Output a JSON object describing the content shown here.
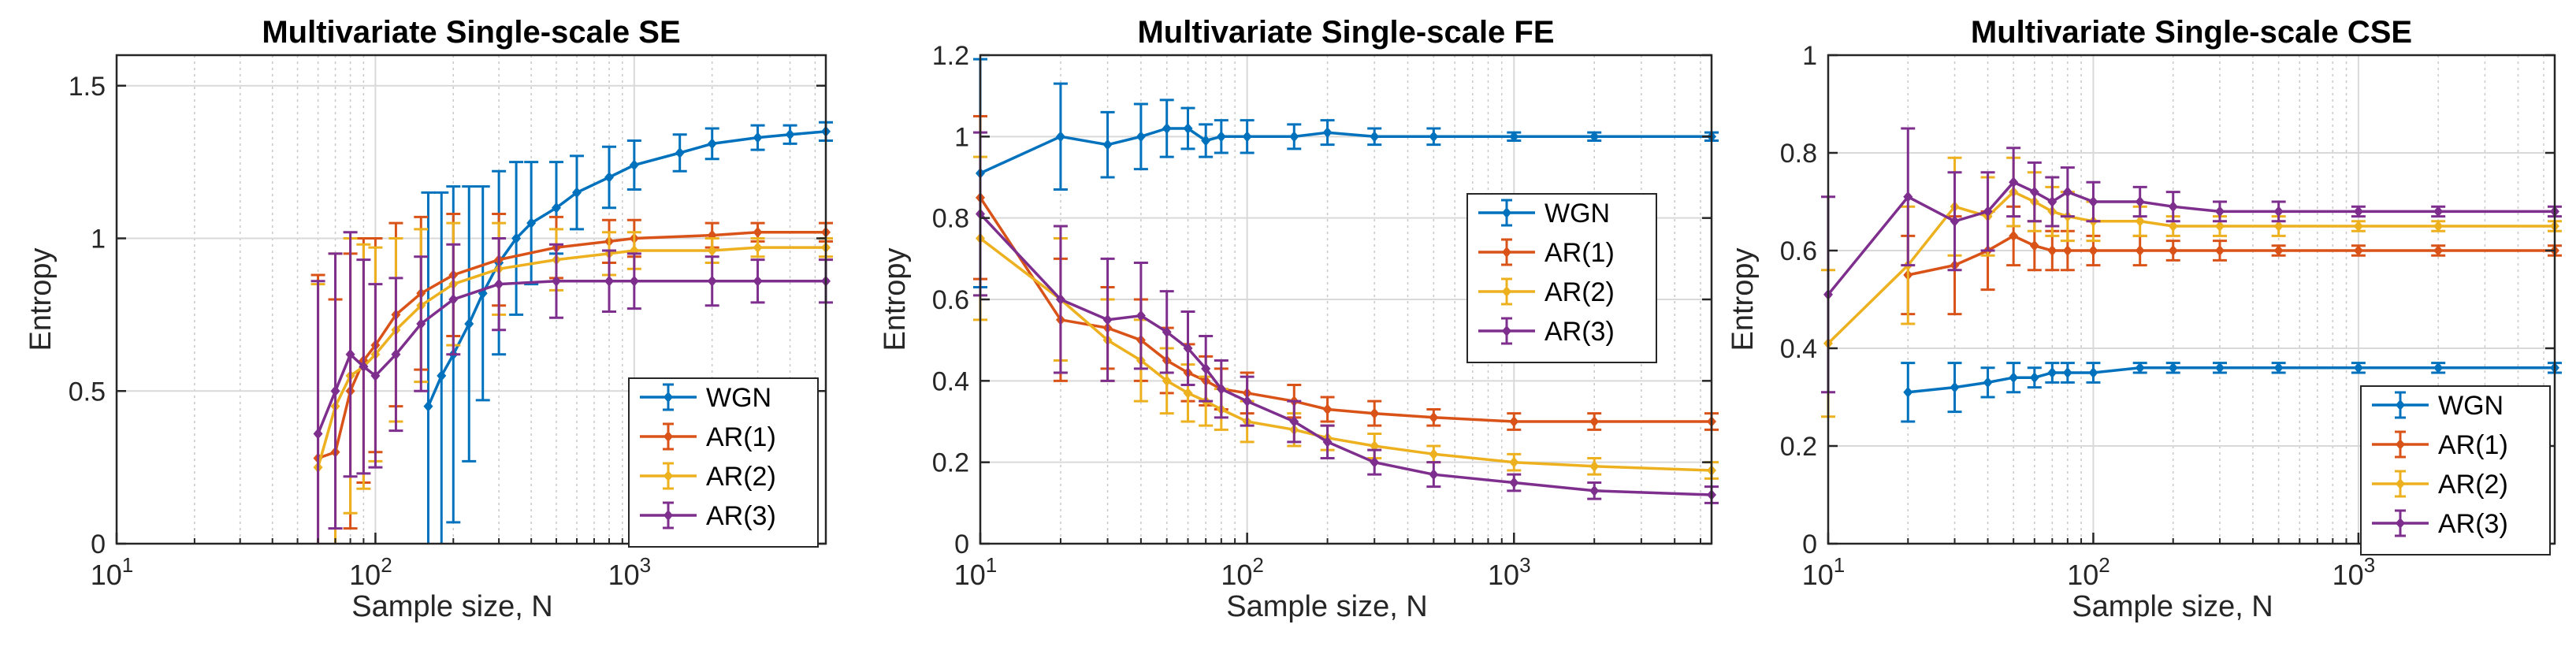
{
  "colors": {
    "WGN": "#0072BD",
    "AR(1)": "#D95319",
    "AR(2)": "#EDB120",
    "AR(3)": "#7E2F8E"
  },
  "chart_data": [
    {
      "type": "line",
      "title": "Multivariate Single-scale SE",
      "xlabel": "Sample size, N",
      "ylabel": "Entropy",
      "xscale": "log",
      "xlim": [
        10,
        5500
      ],
      "ylim": [
        0,
        1.6
      ],
      "yticks": [
        "0",
        "0.5",
        "1",
        "1.5"
      ],
      "yticks_values": [
        0,
        0.5,
        1,
        1.5
      ],
      "legend_position": "bottom-right",
      "series": [
        {
          "name": "WGN",
          "x": [
            160,
            180,
            200,
            230,
            260,
            300,
            350,
            400,
            500,
            600,
            800,
            1000,
            1500,
            2000,
            3000,
            4000,
            5500
          ],
          "y": [
            0.45,
            0.55,
            0.62,
            0.72,
            0.82,
            0.92,
            1.0,
            1.05,
            1.1,
            1.15,
            1.2,
            1.24,
            1.28,
            1.31,
            1.33,
            1.34,
            1.35
          ],
          "err": [
            0.7,
            0.6,
            0.55,
            0.45,
            0.35,
            0.3,
            0.25,
            0.2,
            0.15,
            0.12,
            0.1,
            0.08,
            0.06,
            0.05,
            0.04,
            0.03,
            0.03
          ]
        },
        {
          "name": "AR(1)",
          "x": [
            60,
            70,
            80,
            90,
            100,
            120,
            150,
            200,
            300,
            500,
            800,
            1000,
            2000,
            3000,
            5500
          ],
          "y": [
            0.28,
            0.3,
            0.5,
            0.6,
            0.65,
            0.75,
            0.82,
            0.88,
            0.93,
            0.97,
            0.99,
            1.0,
            1.01,
            1.02,
            1.02
          ],
          "err": [
            0.6,
            0.5,
            0.45,
            0.4,
            0.35,
            0.3,
            0.25,
            0.2,
            0.15,
            0.1,
            0.07,
            0.06,
            0.04,
            0.03,
            0.03
          ]
        },
        {
          "name": "AR(2)",
          "x": [
            60,
            70,
            80,
            90,
            100,
            120,
            150,
            200,
            300,
            500,
            800,
            1000,
            2000,
            3000,
            5500
          ],
          "y": [
            0.25,
            0.45,
            0.55,
            0.58,
            0.62,
            0.7,
            0.78,
            0.85,
            0.9,
            0.93,
            0.95,
            0.96,
            0.96,
            0.97,
            0.97
          ],
          "err": [
            0.6,
            0.5,
            0.45,
            0.4,
            0.35,
            0.3,
            0.25,
            0.2,
            0.15,
            0.1,
            0.07,
            0.06,
            0.04,
            0.03,
            0.03
          ]
        },
        {
          "name": "AR(3)",
          "x": [
            60,
            70,
            80,
            90,
            100,
            120,
            150,
            200,
            300,
            500,
            800,
            1000,
            2000,
            3000,
            5500
          ],
          "y": [
            0.36,
            0.5,
            0.62,
            0.58,
            0.55,
            0.62,
            0.72,
            0.8,
            0.85,
            0.86,
            0.86,
            0.86,
            0.86,
            0.86,
            0.86
          ],
          "err": [
            0.5,
            0.45,
            0.4,
            0.35,
            0.3,
            0.25,
            0.22,
            0.18,
            0.15,
            0.12,
            0.1,
            0.09,
            0.08,
            0.07,
            0.07
          ]
        }
      ]
    },
    {
      "type": "line",
      "title": "Multivariate Single-scale FE",
      "xlabel": "Sample size, N",
      "ylabel": "Entropy",
      "xscale": "log",
      "xlim": [
        10,
        5500
      ],
      "ylim": [
        0,
        1.2
      ],
      "yticks": [
        "0",
        "0.2",
        "0.4",
        "0.6",
        "0.8",
        "1",
        "1.2"
      ],
      "yticks_values": [
        0,
        0.2,
        0.4,
        0.6,
        0.8,
        1,
        1.2
      ],
      "legend_position": "middle-right",
      "series": [
        {
          "name": "WGN",
          "x": [
            10,
            20,
            30,
            40,
            50,
            60,
            70,
            80,
            100,
            150,
            200,
            300,
            500,
            1000,
            2000,
            5500
          ],
          "y": [
            0.91,
            1.0,
            0.98,
            1.0,
            1.02,
            1.02,
            0.99,
            1.0,
            1.0,
            1.0,
            1.01,
            1.0,
            1.0,
            1.0,
            1.0,
            1.0
          ],
          "err": [
            0.28,
            0.13,
            0.08,
            0.08,
            0.07,
            0.05,
            0.04,
            0.04,
            0.04,
            0.03,
            0.03,
            0.02,
            0.02,
            0.01,
            0.01,
            0.01
          ]
        },
        {
          "name": "AR(1)",
          "x": [
            10,
            20,
            30,
            40,
            50,
            60,
            70,
            80,
            100,
            150,
            200,
            300,
            500,
            1000,
            2000,
            5500
          ],
          "y": [
            0.85,
            0.55,
            0.53,
            0.5,
            0.45,
            0.42,
            0.4,
            0.38,
            0.37,
            0.35,
            0.33,
            0.32,
            0.31,
            0.3,
            0.3,
            0.3
          ],
          "err": [
            0.2,
            0.15,
            0.1,
            0.1,
            0.08,
            0.07,
            0.06,
            0.05,
            0.05,
            0.04,
            0.03,
            0.03,
            0.02,
            0.02,
            0.02,
            0.02
          ]
        },
        {
          "name": "AR(2)",
          "x": [
            10,
            20,
            30,
            40,
            50,
            60,
            70,
            80,
            100,
            150,
            200,
            300,
            500,
            1000,
            2000,
            5500
          ],
          "y": [
            0.75,
            0.6,
            0.5,
            0.45,
            0.4,
            0.37,
            0.35,
            0.33,
            0.3,
            0.28,
            0.26,
            0.24,
            0.22,
            0.2,
            0.19,
            0.18
          ],
          "err": [
            0.2,
            0.15,
            0.1,
            0.1,
            0.08,
            0.07,
            0.06,
            0.05,
            0.05,
            0.04,
            0.03,
            0.03,
            0.02,
            0.02,
            0.02,
            0.02
          ]
        },
        {
          "name": "AR(3)",
          "x": [
            10,
            20,
            30,
            40,
            50,
            60,
            70,
            80,
            100,
            150,
            200,
            300,
            500,
            1000,
            2000,
            5500
          ],
          "y": [
            0.81,
            0.6,
            0.55,
            0.56,
            0.52,
            0.48,
            0.43,
            0.38,
            0.35,
            0.3,
            0.25,
            0.2,
            0.17,
            0.15,
            0.13,
            0.12
          ],
          "err": [
            0.2,
            0.18,
            0.15,
            0.13,
            0.1,
            0.09,
            0.08,
            0.07,
            0.06,
            0.05,
            0.04,
            0.03,
            0.03,
            0.02,
            0.02,
            0.02
          ]
        }
      ]
    },
    {
      "type": "line",
      "title": "Multivariate Single-scale CSE",
      "xlabel": "Sample size, N",
      "ylabel": "Entropy",
      "xscale": "log",
      "xlim": [
        10,
        5500
      ],
      "ylim": [
        0,
        1
      ],
      "yticks": [
        "0",
        "0.2",
        "0.4",
        "0.6",
        "0.8",
        "1"
      ],
      "yticks_values": [
        0,
        0.2,
        0.4,
        0.6,
        0.8,
        1
      ],
      "legend_position": "bottom-right",
      "series": [
        {
          "name": "WGN",
          "x": [
            20,
            30,
            40,
            50,
            60,
            70,
            80,
            100,
            150,
            200,
            300,
            500,
            1000,
            2000,
            5500
          ],
          "y": [
            0.31,
            0.32,
            0.33,
            0.34,
            0.34,
            0.35,
            0.35,
            0.35,
            0.36,
            0.36,
            0.36,
            0.36,
            0.36,
            0.36,
            0.36
          ],
          "err": [
            0.06,
            0.05,
            0.03,
            0.03,
            0.02,
            0.02,
            0.02,
            0.02,
            0.01,
            0.01,
            0.01,
            0.01,
            0.01,
            0.01,
            0.01
          ]
        },
        {
          "name": "AR(1)",
          "x": [
            20,
            30,
            40,
            50,
            60,
            70,
            80,
            100,
            150,
            200,
            300,
            500,
            1000,
            2000,
            5500
          ],
          "y": [
            0.55,
            0.57,
            0.6,
            0.63,
            0.61,
            0.6,
            0.6,
            0.6,
            0.6,
            0.6,
            0.6,
            0.6,
            0.6,
            0.6,
            0.6
          ],
          "err": [
            0.08,
            0.1,
            0.08,
            0.06,
            0.05,
            0.04,
            0.04,
            0.03,
            0.03,
            0.02,
            0.02,
            0.01,
            0.01,
            0.01,
            0.01
          ]
        },
        {
          "name": "AR(2)",
          "x": [
            10,
            20,
            30,
            40,
            50,
            60,
            70,
            80,
            100,
            150,
            200,
            300,
            500,
            1000,
            2000,
            5500
          ],
          "y": [
            0.41,
            0.57,
            0.69,
            0.67,
            0.72,
            0.7,
            0.68,
            0.67,
            0.66,
            0.66,
            0.65,
            0.65,
            0.65,
            0.65,
            0.65,
            0.65
          ],
          "err": [
            0.15,
            0.12,
            0.1,
            0.08,
            0.07,
            0.06,
            0.05,
            0.05,
            0.04,
            0.03,
            0.02,
            0.02,
            0.02,
            0.01,
            0.01,
            0.01
          ]
        },
        {
          "name": "AR(3)",
          "x": [
            10,
            20,
            30,
            40,
            50,
            60,
            70,
            80,
            100,
            150,
            200,
            300,
            500,
            1000,
            2000,
            5500
          ],
          "y": [
            0.51,
            0.71,
            0.66,
            0.68,
            0.74,
            0.72,
            0.7,
            0.72,
            0.7,
            0.7,
            0.69,
            0.68,
            0.68,
            0.68,
            0.68,
            0.68
          ],
          "err": [
            0.2,
            0.14,
            0.1,
            0.08,
            0.07,
            0.06,
            0.05,
            0.05,
            0.04,
            0.03,
            0.03,
            0.02,
            0.02,
            0.01,
            0.01,
            0.01
          ]
        }
      ]
    }
  ]
}
